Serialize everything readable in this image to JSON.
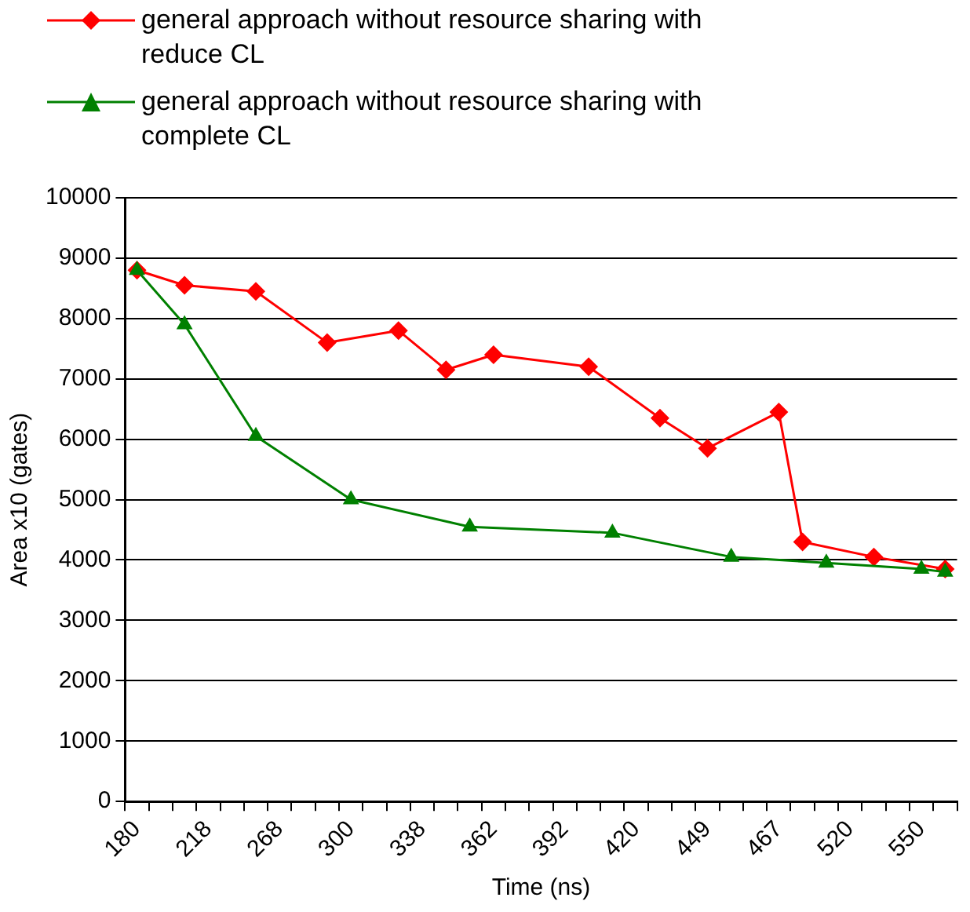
{
  "chart_data": {
    "type": "line",
    "xlabel": "Time (ns)",
    "ylabel": "Area x10 (gates)",
    "categories": [
      "180",
      null,
      null,
      "218",
      null,
      null,
      "268",
      null,
      null,
      "300",
      null,
      null,
      "338",
      null,
      null,
      "362",
      null,
      null,
      "392",
      null,
      null,
      "420",
      null,
      null,
      "449",
      null,
      null,
      "467",
      null,
      null,
      "520",
      null,
      null,
      "550",
      null
    ],
    "series": [
      {
        "name": "general approach without resource sharing with reduce CL",
        "color": "#ff0000",
        "marker": "diamond",
        "values": [
          8800,
          null,
          8550,
          null,
          null,
          8450,
          null,
          null,
          7600,
          null,
          null,
          7800,
          null,
          7150,
          null,
          7400,
          null,
          null,
          null,
          7200,
          null,
          null,
          6350,
          null,
          5850,
          null,
          null,
          6450,
          4300,
          null,
          null,
          4050,
          null,
          null,
          3850
        ]
      },
      {
        "name": "general approach without resource sharing with complete CL",
        "color": "#008000",
        "marker": "triangle",
        "values": [
          8800,
          null,
          7900,
          null,
          null,
          6050,
          null,
          null,
          null,
          5000,
          null,
          null,
          null,
          null,
          4550,
          null,
          null,
          null,
          null,
          null,
          4450,
          null,
          null,
          null,
          null,
          4050,
          null,
          null,
          null,
          3950,
          null,
          null,
          null,
          3850,
          3800
        ]
      }
    ],
    "ylim": [
      0,
      10000
    ],
    "yticks": [
      0,
      1000,
      2000,
      3000,
      4000,
      5000,
      6000,
      7000,
      8000,
      9000,
      10000
    ],
    "grid": "y",
    "legend": "top"
  }
}
